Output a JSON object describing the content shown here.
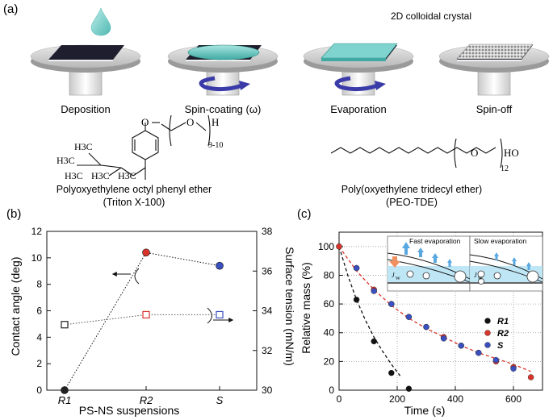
{
  "panel_a": {
    "label": "(a)",
    "crystal_title": "2D colloidal crystal",
    "steps": [
      "Deposition",
      "Spin-coating (ω)",
      "Evaporation",
      "Spin-off"
    ],
    "triton": {
      "name": "Polyoxyethylene octyl phenyl ether",
      "short": "(Triton X-100)",
      "subscript": "9-10",
      "groups": [
        "H3C",
        "H3C",
        "H3C",
        "H3C",
        "H3C"
      ],
      "atoms": [
        "O",
        "O",
        "H"
      ]
    },
    "peo": {
      "name": "Poly(oxyethylene tridecyl ether)",
      "short": "(PEO-TDE)",
      "subscript": "12",
      "atoms": [
        "O",
        "HO"
      ]
    },
    "colors": {
      "liquid": "#7fd4cf",
      "plate": "#c8c8c8",
      "substrate": "#1e1e2e",
      "arrow": "#3a3aa8"
    }
  },
  "chart_data": [
    {
      "panel_label": "(b)",
      "type": "scatter",
      "categories": [
        "R1",
        "R2",
        "S"
      ],
      "xlabel": "PS-NS suspensions",
      "ylabel": "Contact angle (deg)",
      "ylabel_right": "Surface tension (mN/m)",
      "ylim": [
        0,
        12
      ],
      "yticks": [
        0,
        2,
        4,
        6,
        8,
        10,
        12
      ],
      "ylim_right": [
        30,
        38
      ],
      "yticks_right": [
        30,
        32,
        34,
        36,
        38
      ],
      "series": [
        {
          "axis": "left",
          "values": [
            0,
            10.4,
            9.4
          ],
          "marker": "filled-circle",
          "colors": [
            "#222222",
            "#d9342b",
            "#3a4fc0"
          ]
        },
        {
          "axis": "right",
          "values": [
            33.3,
            33.8,
            33.8
          ],
          "marker": "open-square",
          "colors": [
            "#222222",
            "#d9342b",
            "#3a4fc0"
          ]
        }
      ]
    },
    {
      "panel_label": "(c)",
      "type": "scatter",
      "xlabel": "Time (s)",
      "ylabel": "Relative mass (%)",
      "xlim": [
        0,
        700
      ],
      "xticks": [
        0,
        200,
        400,
        600
      ],
      "ylim": [
        0,
        110
      ],
      "yticks": [
        0,
        20,
        40,
        60,
        80,
        100
      ],
      "grid": true,
      "legend_position": "right",
      "series": [
        {
          "name": "R1",
          "color": "#111111",
          "x": [
            0,
            60,
            120,
            180,
            240
          ],
          "y": [
            100,
            63,
            34,
            12,
            1
          ],
          "fit": {
            "x": [
              0,
              30,
              60,
              90,
              120,
              150,
              180,
              210
            ],
            "y": [
              100,
              80,
              63,
              49,
              37,
              27,
              18,
              10
            ]
          }
        },
        {
          "name": "R2",
          "color": "#d9342b",
          "x": [
            0,
            60,
            120,
            180,
            240,
            300,
            360,
            420,
            480,
            540,
            600,
            660
          ],
          "y": [
            100,
            85,
            70,
            60,
            51,
            44,
            37,
            31,
            26,
            20,
            16,
            9
          ],
          "fit": {
            "x": [
              0,
              60,
              120,
              180,
              240,
              300,
              360,
              420,
              480,
              540,
              600,
              660
            ],
            "y": [
              100,
              83,
              70,
              59,
              50,
              43,
              37,
              31,
              26,
              22,
              18,
              13
            ]
          }
        },
        {
          "name": "S",
          "color": "#3a4fc0",
          "x": [
            60,
            120,
            180,
            240,
            300,
            360,
            420,
            480,
            540,
            600
          ],
          "y": [
            85,
            69,
            60,
            51,
            44,
            36,
            31,
            26,
            21,
            15
          ]
        }
      ],
      "insets": {
        "fast": "Fast evaporation",
        "slow": "Slow evaporation",
        "flux": "J",
        "flux_sub": "W"
      }
    }
  ]
}
